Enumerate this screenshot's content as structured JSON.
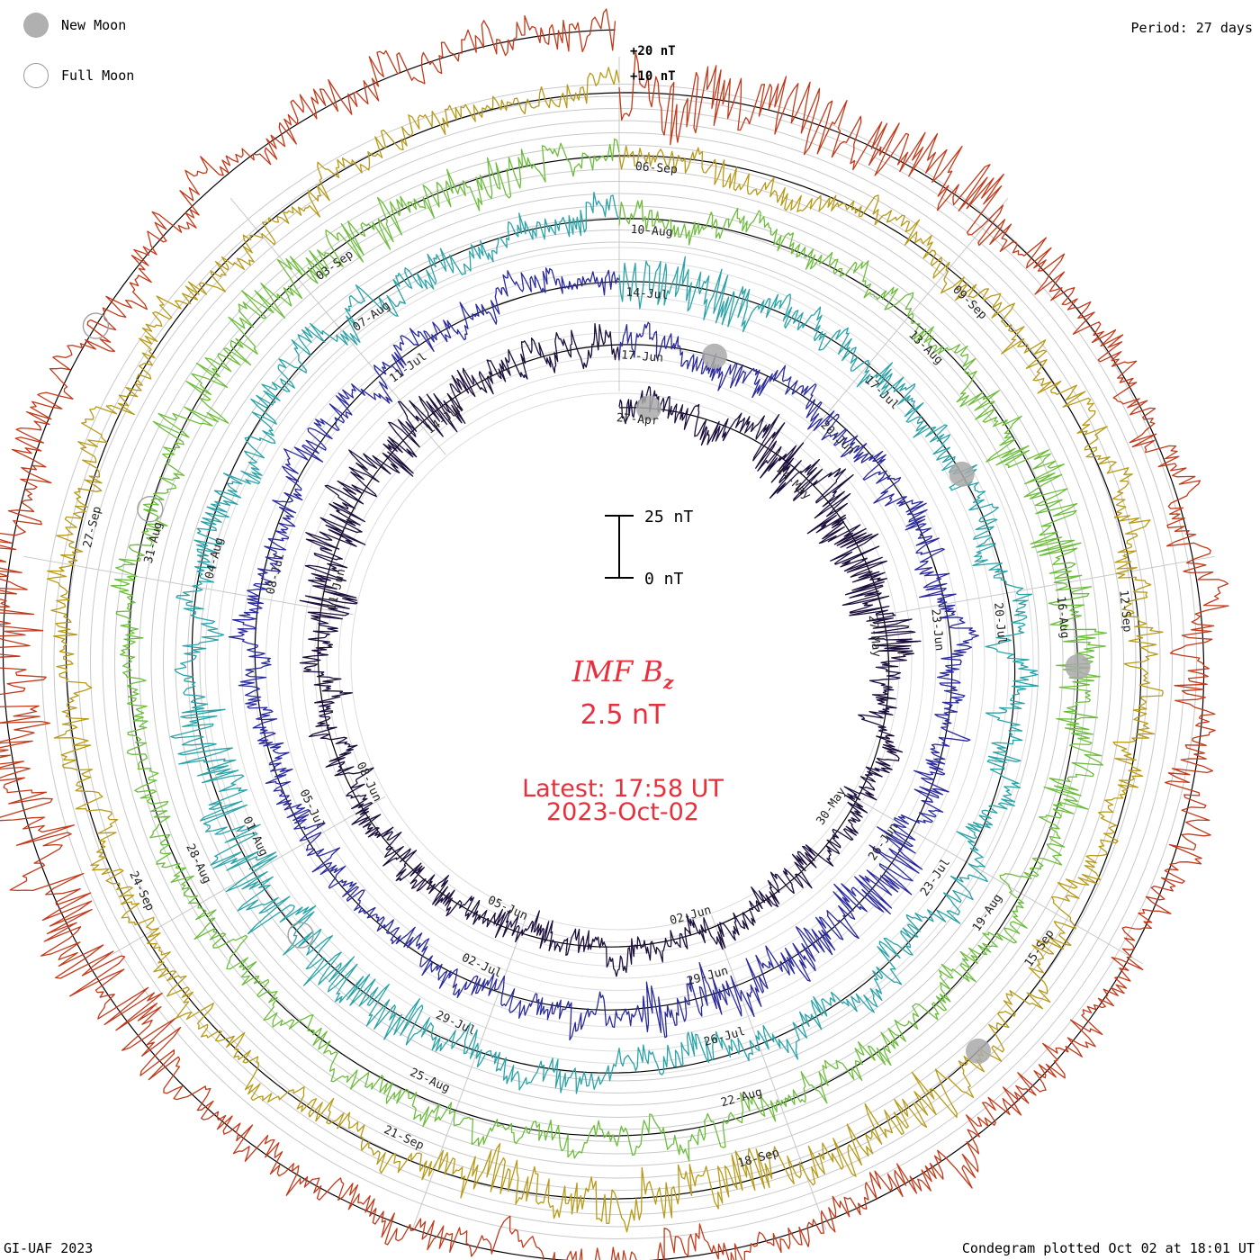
{
  "header": {
    "new_moon_label": "New Moon",
    "full_moon_label": "Full Moon",
    "period_label": "Period: 27 days"
  },
  "footer": {
    "credit": "GI-UAF 2023",
    "plotted": "Condegram plotted Oct 02 at 18:01 UT"
  },
  "center": {
    "title_main": "IMF B",
    "title_sub": "z",
    "current_value": "2.5 nT",
    "latest": "Latest: 17:58 UT",
    "latest_date": "2023-Oct-02"
  },
  "colors": {
    "accent_text": "#e8303c",
    "ring_grid": "#c4c4c4",
    "moon_fill": "#a9a9a9"
  },
  "chart_data": {
    "type": "line",
    "title": "IMF Bz",
    "subtitle": "2.5 nT",
    "period_days": 27,
    "scale_bar": {
      "top_label": "25 nT",
      "bottom_label": "0 nT"
    },
    "ring_labels": [
      "+20 nT",
      "+10 nT"
    ],
    "series": [
      {
        "cycle": 1,
        "color": "#1c0e3c",
        "amplitude_nT": 10,
        "date_labels": [
          "27-Apr",
          "24-May",
          "27-May",
          "30-May",
          "02-Jun",
          "05-Jun",
          "08-Jun",
          "11-Jun",
          "14-Jun"
        ]
      },
      {
        "cycle": 2,
        "color": "#2a2a9e",
        "amplitude_nT": 10,
        "date_labels": [
          "17-Jun",
          "20-Jun",
          "23-Jun",
          "26-Jun",
          "29-Jun",
          "02-Jul",
          "05-Jul",
          "08-Jul",
          "11-Jul"
        ]
      },
      {
        "cycle": 3,
        "color": "#2aa3a8",
        "amplitude_nT": 11,
        "date_labels": [
          "14-Jul",
          "17-Jul",
          "20-Jul",
          "23-Jul",
          "26-Jul",
          "29-Jul",
          "01-Aug",
          "04-Aug",
          "07-Aug"
        ]
      },
      {
        "cycle": 4,
        "color": "#6dbd3c",
        "amplitude_nT": 9,
        "date_labels": [
          "10-Aug",
          "13-Aug",
          "16-Aug",
          "19-Aug",
          "22-Aug",
          "25-Aug",
          "28-Aug",
          "31-Aug",
          "03-Sep"
        ]
      },
      {
        "cycle": 5,
        "color": "#b89a18",
        "amplitude_nT": 10,
        "date_labels": [
          "06-Sep",
          "09-Sep",
          "12-Sep",
          "15-Sep",
          "18-Sep",
          "21-Sep",
          "24-Sep",
          "27-Sep"
        ]
      },
      {
        "cycle": 6,
        "color": "#c23a1a",
        "amplitude_nT": 14,
        "date_labels": []
      }
    ],
    "moon_markers": {
      "new": [
        {
          "cycle": 1,
          "day": 0.5
        },
        {
          "cycle": 2,
          "day": 1.3
        },
        {
          "cycle": 3,
          "day": 4.6
        },
        {
          "cycle": 4,
          "day": 6.8
        },
        {
          "cycle": 5,
          "day": 10.3
        }
      ],
      "full": [
        {
          "cycle": 3,
          "day": 17.2
        },
        {
          "cycle": 4,
          "day": 21.6
        },
        {
          "cycle": 6,
          "day": 22.7
        }
      ]
    }
  }
}
